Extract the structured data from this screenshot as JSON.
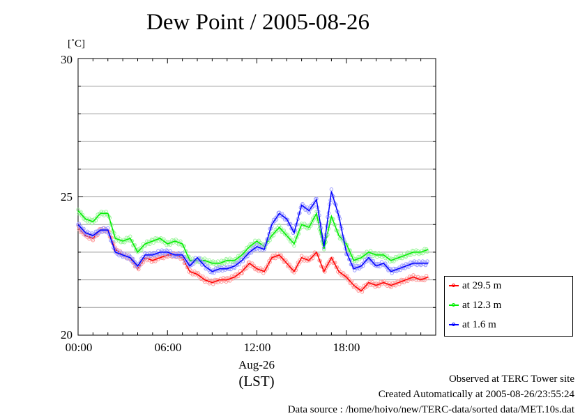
{
  "chart_data": {
    "type": "line",
    "title": "Dew Point / 2005-08-26",
    "ylabel": "[˚C]",
    "xlabel_date": "Aug-26",
    "xlabel_unit": "(LST)",
    "ylim": [
      20,
      30
    ],
    "yticks": [
      "20",
      "25",
      "30"
    ],
    "xlim": [
      0,
      24
    ],
    "xticks": [
      "00:00",
      "06:00",
      "12:00",
      "18:00"
    ],
    "x": [
      0,
      0.5,
      1,
      1.5,
      2,
      2.5,
      3,
      3.5,
      4,
      4.5,
      5,
      5.5,
      6,
      6.5,
      7,
      7.5,
      8,
      8.5,
      9,
      9.5,
      10,
      10.5,
      11,
      11.5,
      12,
      12.5,
      13,
      13.5,
      14,
      14.5,
      15,
      15.5,
      16,
      16.5,
      17,
      17.5,
      18,
      18.5,
      19,
      19.5,
      20,
      20.5,
      21,
      21.5,
      22,
      22.5,
      23,
      23.5
    ],
    "series": [
      {
        "name": "at 29.5 m",
        "color": "#ff0000",
        "values": [
          23.9,
          23.6,
          23.5,
          23.8,
          23.8,
          23.1,
          22.9,
          22.8,
          22.4,
          22.8,
          22.7,
          22.8,
          22.9,
          22.9,
          22.8,
          22.3,
          22.2,
          22.0,
          21.9,
          22.0,
          22.0,
          22.1,
          22.3,
          22.6,
          22.4,
          22.3,
          22.8,
          22.9,
          22.6,
          22.3,
          22.8,
          22.7,
          23.0,
          22.3,
          22.8,
          22.3,
          22.1,
          21.8,
          21.6,
          21.9,
          21.8,
          21.9,
          21.8,
          21.9,
          22.0,
          22.1,
          22.0,
          22.1
        ]
      },
      {
        "name": "at 12.3 m",
        "color": "#00ee00",
        "values": [
          24.5,
          24.2,
          24.1,
          24.4,
          24.4,
          23.5,
          23.4,
          23.5,
          23.0,
          23.3,
          23.4,
          23.5,
          23.3,
          23.4,
          23.3,
          22.7,
          22.7,
          22.7,
          22.6,
          22.6,
          22.7,
          22.7,
          22.9,
          23.2,
          23.4,
          23.2,
          23.6,
          23.9,
          23.6,
          23.3,
          24.0,
          23.9,
          24.4,
          23.1,
          24.3,
          23.6,
          23.3,
          22.7,
          22.8,
          23.0,
          22.9,
          22.9,
          22.7,
          22.8,
          22.9,
          23.0,
          23.0,
          23.1
        ]
      },
      {
        "name": "at 1.6 m",
        "color": "#0000ff",
        "values": [
          24.0,
          23.7,
          23.6,
          23.8,
          23.8,
          23.0,
          22.9,
          22.8,
          22.5,
          22.9,
          22.9,
          23.0,
          23.0,
          22.9,
          22.9,
          22.5,
          22.8,
          22.5,
          22.3,
          22.4,
          22.4,
          22.5,
          22.7,
          23.0,
          23.2,
          23.1,
          24.0,
          24.4,
          24.2,
          23.7,
          24.7,
          24.5,
          24.9,
          23.2,
          25.2,
          24.3,
          23.0,
          22.4,
          22.5,
          22.8,
          22.5,
          22.6,
          22.3,
          22.4,
          22.5,
          22.6,
          22.6,
          22.6
        ]
      }
    ],
    "legend_position": "bottom-right, outside plot",
    "grid": "horizontal"
  },
  "footer": {
    "line1": "Observed at TERC Tower site",
    "line2": "Created Automatically at 2005-08-26/23:55:24",
    "line3": "Data source : /home/hoivo/new/TERC-data/sorted  data/MET.10s.dat"
  }
}
